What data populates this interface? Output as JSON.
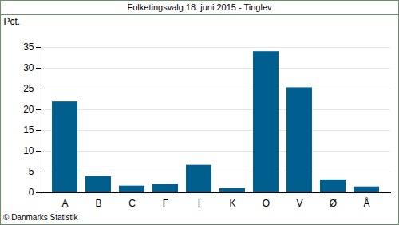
{
  "chart_data": {
    "type": "bar",
    "title": "Folketingsvalg 18. juni 2015 - Tinglev",
    "y_label": "Pct.",
    "source": "© Danmarks Statistik",
    "categories": [
      "A",
      "B",
      "C",
      "F",
      "I",
      "K",
      "O",
      "V",
      "Ø",
      "Å"
    ],
    "values": [
      21.9,
      3.9,
      1.6,
      2.0,
      6.6,
      1.0,
      34.0,
      25.3,
      3.1,
      1.4
    ],
    "color": "#005f8e",
    "ylim": [
      0,
      35
    ],
    "yticks": [
      0,
      5,
      10,
      15,
      20,
      25,
      30,
      35
    ],
    "grid": true
  }
}
